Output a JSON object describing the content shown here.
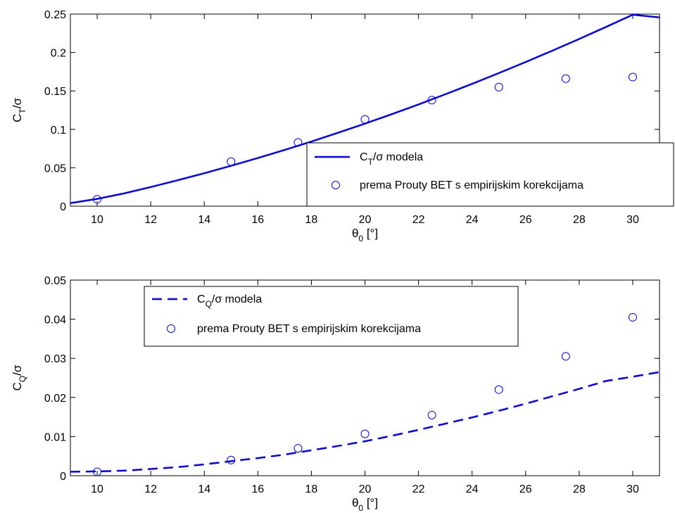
{
  "colors": {
    "series": "#0000ff",
    "axis": "#000000",
    "background": "#ffffff"
  },
  "chart_data": [
    {
      "type": "line",
      "xlabel": {
        "main": "θ",
        "sub": "0",
        "rest": " [°]"
      },
      "ylabel": {
        "main": "C",
        "sub": "T",
        "rest": "/σ"
      },
      "xlim": [
        9,
        31
      ],
      "ylim": [
        0,
        0.25
      ],
      "xticks": [
        10,
        12,
        14,
        16,
        18,
        20,
        22,
        24,
        26,
        28,
        30
      ],
      "yticks": [
        0,
        0.05,
        0.1,
        0.15,
        0.2,
        0.25
      ],
      "ytick_labels": [
        "0",
        "0.05",
        "0.1",
        "0.15",
        "0.2",
        "0.25"
      ],
      "grid": false,
      "legend_position": "bottom-right",
      "series": [
        {
          "name": {
            "main": "C",
            "sub": "T",
            "rest": "/σ modela"
          },
          "style": "solid-line",
          "x": [
            9,
            10,
            11,
            12,
            13,
            14,
            15,
            16,
            17,
            18,
            19,
            20,
            21,
            22,
            23,
            24,
            25,
            26,
            27,
            28,
            29,
            30,
            31
          ],
          "y": [
            0.004,
            0.0095,
            0.0166,
            0.0249,
            0.0337,
            0.0429,
            0.0526,
            0.0626,
            0.0732,
            0.0841,
            0.0956,
            0.1074,
            0.1197,
            0.1324,
            0.1456,
            0.1592,
            0.1732,
            0.1876,
            0.2024,
            0.2176,
            0.2332,
            0.2492,
            0.2456
          ]
        },
        {
          "name": "prema Prouty BET s empirijskim korekcijama",
          "style": "circle-markers",
          "x": [
            10,
            15,
            17.5,
            20,
            22.5,
            25,
            27.5,
            30
          ],
          "y": [
            0.009,
            0.058,
            0.083,
            0.113,
            0.138,
            0.155,
            0.166,
            0.168
          ]
        }
      ]
    },
    {
      "type": "line",
      "xlabel": {
        "main": "θ",
        "sub": "0",
        "rest": " [°]"
      },
      "ylabel": {
        "main": "C",
        "sub": "Q",
        "rest": "/σ"
      },
      "xlim": [
        9,
        31
      ],
      "ylim": [
        0,
        0.05
      ],
      "xticks": [
        10,
        12,
        14,
        16,
        18,
        20,
        22,
        24,
        26,
        28,
        30
      ],
      "yticks": [
        0,
        0.01,
        0.02,
        0.03,
        0.04,
        0.05
      ],
      "ytick_labels": [
        "0",
        "0.01",
        "0.02",
        "0.03",
        "0.04",
        "0.05"
      ],
      "grid": false,
      "legend_position": "top-left",
      "series": [
        {
          "name": {
            "main": "C",
            "sub": "Q",
            "rest": "/σ modela"
          },
          "style": "dashed-line",
          "x": [
            9,
            10,
            11,
            12,
            13,
            14,
            15,
            16,
            17,
            18,
            19,
            20,
            21,
            22,
            23,
            24,
            25,
            26,
            27,
            28,
            29,
            30,
            31
          ],
          "y": [
            0.001,
            0.0011,
            0.0013,
            0.0017,
            0.0022,
            0.0029,
            0.0037,
            0.0045,
            0.0054,
            0.0065,
            0.0076,
            0.0088,
            0.0102,
            0.0117,
            0.0133,
            0.0149,
            0.0166,
            0.0184,
            0.0203,
            0.0222,
            0.0242,
            0.0253,
            0.0265
          ]
        },
        {
          "name": "prema Prouty BET s empirijskim korekcijama",
          "style": "circle-markers",
          "x": [
            10,
            15,
            17.5,
            20,
            22.5,
            25,
            27.5,
            30
          ],
          "y": [
            0.001,
            0.004,
            0.007,
            0.0107,
            0.0155,
            0.022,
            0.0305,
            0.0405
          ]
        }
      ]
    }
  ]
}
